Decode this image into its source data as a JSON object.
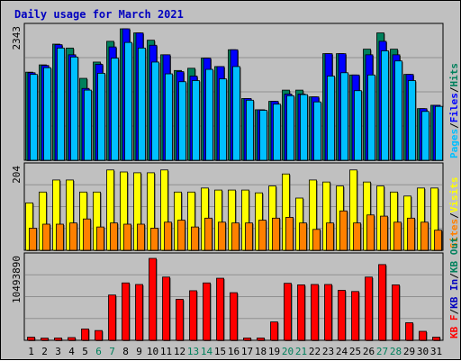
{
  "title": "Daily usage for March 2021",
  "colors": {
    "hits": "#00805c",
    "files": "#0000ff",
    "pages": "#00c0ff",
    "visits": "#ffff00",
    "sites": "#ff8000",
    "kbin": "#0000c0",
    "kbout": "#00805c",
    "kbf": "#ff0000",
    "weekend": "#00805c",
    "weekday": "#000000"
  },
  "chart_data": [
    {
      "type": "bar",
      "panel": "top",
      "max_label": "2343",
      "legend": [
        {
          "label": "Pages",
          "color_key": "pages"
        },
        {
          "label": "/",
          "color_key": "weekday"
        },
        {
          "label": "Files",
          "color_key": "files"
        },
        {
          "label": "/",
          "color_key": "weekday"
        },
        {
          "label": "Hits",
          "color_key": "hits"
        }
      ],
      "categories": [
        "1",
        "2",
        "3",
        "4",
        "5",
        "6",
        "7",
        "8",
        "9",
        "10",
        "11",
        "12",
        "13",
        "14",
        "15",
        "16",
        "17",
        "18",
        "19",
        "20",
        "21",
        "22",
        "23",
        "24",
        "25",
        "26",
        "27",
        "28",
        "29",
        "30",
        "31"
      ],
      "weekend_days": [
        "6",
        "7",
        "13",
        "14",
        "20",
        "21",
        "27",
        "28"
      ],
      "ylim": [
        0,
        2343
      ],
      "series": [
        {
          "name": "Hits",
          "color_key": "hits",
          "values": [
            1570,
            1700,
            2070,
            2000,
            1460,
            1750,
            2120,
            2343,
            2270,
            2140,
            1880,
            1600,
            1640,
            1820,
            1670,
            1970,
            1100,
            900,
            1050,
            1250,
            1250,
            1130,
            1900,
            1900,
            1520,
            1980,
            2270,
            1980,
            1530,
            920,
            980
          ]
        },
        {
          "name": "Files",
          "color_key": "files",
          "values": [
            1560,
            1690,
            2060,
            1880,
            1280,
            1710,
            2020,
            2343,
            2270,
            2050,
            1880,
            1580,
            1500,
            1820,
            1670,
            1970,
            1100,
            900,
            1050,
            1180,
            1180,
            1130,
            1900,
            1900,
            1520,
            1880,
            2120,
            1880,
            1530,
            920,
            980
          ]
        },
        {
          "name": "Pages",
          "color_key": "pages",
          "values": [
            1530,
            1650,
            2000,
            1840,
            1250,
            1550,
            1820,
            2100,
            2000,
            1750,
            1540,
            1400,
            1420,
            1620,
            1450,
            1670,
            1070,
            890,
            1000,
            1150,
            1170,
            1040,
            1500,
            1560,
            1240,
            1520,
            1950,
            1770,
            1420,
            870,
            960
          ]
        }
      ]
    },
    {
      "type": "bar",
      "panel": "middle",
      "max_label": "204",
      "legend": [
        {
          "label": "Sites",
          "color_key": "sites"
        },
        {
          "label": "/",
          "color_key": "weekday"
        },
        {
          "label": "Visits",
          "color_key": "visits"
        }
      ],
      "categories": [
        "1",
        "2",
        "3",
        "4",
        "5",
        "6",
        "7",
        "8",
        "9",
        "10",
        "11",
        "12",
        "13",
        "14",
        "15",
        "16",
        "17",
        "18",
        "19",
        "20",
        "21",
        "22",
        "23",
        "24",
        "25",
        "26",
        "27",
        "28",
        "29",
        "30",
        "31"
      ],
      "ylim": [
        0,
        204
      ],
      "series": [
        {
          "name": "Visits",
          "color_key": "visits",
          "values": [
            118,
            145,
            175,
            175,
            145,
            145,
            200,
            195,
            193,
            193,
            200,
            145,
            145,
            155,
            150,
            150,
            150,
            143,
            160,
            190,
            130,
            175,
            170,
            160,
            200,
            170,
            160,
            145,
            135,
            155,
            155
          ]
        },
        {
          "name": "Sites",
          "color_key": "sites",
          "values": [
            55,
            65,
            65,
            68,
            78,
            58,
            68,
            65,
            65,
            55,
            70,
            75,
            58,
            80,
            70,
            68,
            68,
            75,
            80,
            82,
            68,
            52,
            68,
            98,
            68,
            88,
            85,
            70,
            80,
            70,
            50
          ]
        }
      ]
    },
    {
      "type": "bar",
      "panel": "bottom",
      "max_label": "10493890",
      "legend": [
        {
          "label": "KB F",
          "color_key": "kbf"
        },
        {
          "label": "/",
          "color_key": "weekday"
        },
        {
          "label": "KB In",
          "color_key": "kbin"
        },
        {
          "label": "/",
          "color_key": "weekday"
        },
        {
          "label": "KB Out",
          "color_key": "kbout"
        }
      ],
      "categories": [
        "1",
        "2",
        "3",
        "4",
        "5",
        "6",
        "7",
        "8",
        "9",
        "10",
        "11",
        "12",
        "13",
        "14",
        "15",
        "16",
        "17",
        "18",
        "19",
        "20",
        "21",
        "22",
        "23",
        "24",
        "25",
        "26",
        "27",
        "28",
        "29",
        "30",
        "31"
      ],
      "ylim": [
        0,
        10493890
      ],
      "series": [
        {
          "name": "KB F",
          "color_key": "kbf",
          "values": [
            400000,
            280000,
            300000,
            350000,
            1450000,
            1250000,
            5800000,
            7350000,
            7150000,
            10493890,
            8100000,
            5250000,
            6350000,
            7350000,
            7950000,
            6100000,
            300000,
            300000,
            2350000,
            7300000,
            7100000,
            7150000,
            7150000,
            6400000,
            6250000,
            8100000,
            9700000,
            7100000,
            2250000,
            1150000,
            400000
          ]
        }
      ]
    }
  ]
}
